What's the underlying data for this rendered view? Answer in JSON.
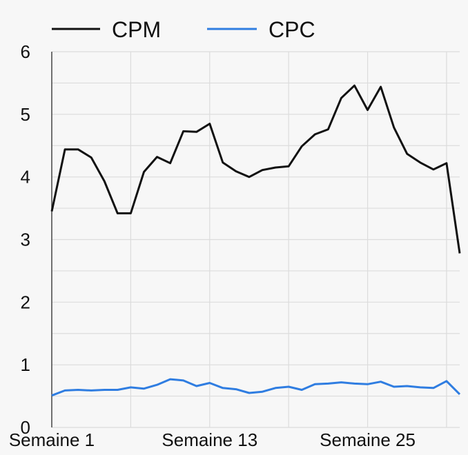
{
  "chart_data": {
    "type": "line",
    "title": "",
    "xlabel": "",
    "ylabel": "",
    "ylim": [
      0,
      6
    ],
    "yticks": [
      "0",
      "1",
      "2",
      "3",
      "4",
      "5",
      "6"
    ],
    "xtick_labels": [
      "Semaine 1",
      "Semaine 13",
      "Semaine 25"
    ],
    "grid": true,
    "legend_position": "top",
    "x": [
      1,
      2,
      3,
      4,
      5,
      6,
      7,
      8,
      9,
      10,
      11,
      12,
      13,
      14,
      15,
      16,
      17,
      18,
      19,
      20,
      21,
      22,
      23,
      24,
      25,
      26,
      27,
      28,
      29,
      30,
      31,
      32
    ],
    "series": [
      {
        "name": "CPM",
        "color": "#111111",
        "values": [
          3.45,
          4.44,
          4.44,
          4.31,
          3.93,
          3.42,
          3.42,
          4.08,
          4.32,
          4.22,
          4.73,
          4.72,
          4.85,
          4.23,
          4.09,
          4.0,
          4.11,
          4.15,
          4.17,
          4.49,
          4.68,
          4.76,
          5.26,
          5.46,
          5.07,
          5.44,
          4.79,
          4.37,
          4.23,
          4.12,
          4.22,
          2.78
        ]
      },
      {
        "name": "CPC",
        "color": "#2f7de1",
        "values": [
          0.51,
          0.59,
          0.6,
          0.59,
          0.6,
          0.6,
          0.64,
          0.62,
          0.68,
          0.77,
          0.75,
          0.66,
          0.71,
          0.63,
          0.61,
          0.55,
          0.57,
          0.63,
          0.65,
          0.6,
          0.69,
          0.7,
          0.72,
          0.7,
          0.69,
          0.73,
          0.65,
          0.66,
          0.64,
          0.63,
          0.74,
          0.53
        ]
      }
    ]
  }
}
